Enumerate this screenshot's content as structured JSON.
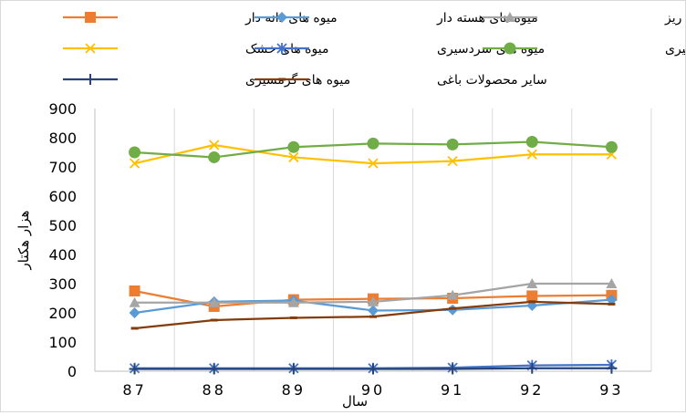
{
  "chart_data": {
    "type": "line",
    "xlabel": "سال",
    "ylabel": "هزار هکتار",
    "x": [
      "87",
      "88",
      "89",
      "90",
      "91",
      "92",
      "93"
    ],
    "ylim": [
      0,
      900
    ],
    "yticks": [
      0,
      100,
      200,
      300,
      400,
      500,
      600,
      700,
      800,
      900
    ],
    "grid": "vertical",
    "legend_position": "top",
    "series": [
      {
        "name": "میوه های دانه دار",
        "color": "#ED7D31",
        "marker": "square",
        "values": [
          275,
          222,
          245,
          248,
          250,
          258,
          260
        ]
      },
      {
        "name": "میوه های هسته دار",
        "color": "#5B9BD5",
        "marker": "diamond",
        "values": [
          200,
          238,
          242,
          208,
          210,
          225,
          245
        ]
      },
      {
        "name": "میوه های دانه ریز",
        "color": "#A5A5A5",
        "marker": "triangle",
        "values": [
          235,
          235,
          235,
          238,
          260,
          300,
          300
        ]
      },
      {
        "name": "میوه های خشک",
        "color": "#FFC000",
        "marker": "x",
        "values": [
          712,
          775,
          733,
          712,
          720,
          743,
          743
        ]
      },
      {
        "name": "میوه های سردسیری",
        "color": "#4472C4",
        "marker": "star",
        "values": [
          10,
          10,
          10,
          10,
          12,
          20,
          22
        ]
      },
      {
        "name": "میوه های نیمه گرمسیری",
        "color": "#70AD47",
        "marker": "circle",
        "values": [
          750,
          733,
          768,
          780,
          777,
          786,
          768
        ]
      },
      {
        "name": "میوه های گرمسیری",
        "color": "#264478",
        "marker": "plus",
        "values": [
          8,
          8,
          8,
          8,
          8,
          10,
          10
        ]
      },
      {
        "name": "سایر محصولات باغی",
        "color": "#843C0C",
        "marker": "dash",
        "values": [
          147,
          175,
          183,
          187,
          215,
          238,
          230
        ]
      }
    ]
  }
}
